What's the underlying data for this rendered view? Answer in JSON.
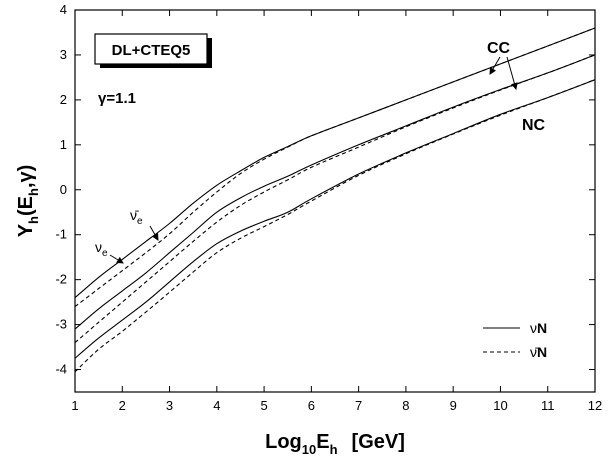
{
  "chart_data": {
    "type": "line",
    "xlabel": {
      "main": "Log",
      "sub": "10",
      "main2": "E",
      "sub2": "h",
      "unit": "[GeV]"
    },
    "ylabel": {
      "main": "Y",
      "sub": "h",
      "args": "(E",
      "argsub": "h",
      "tail": ",γ)"
    },
    "xlim": [
      1,
      12
    ],
    "ylim": [
      -4.5,
      4
    ],
    "xticks": [
      1,
      2,
      3,
      4,
      5,
      6,
      7,
      8,
      9,
      10,
      11,
      12
    ],
    "yticks": [
      -4,
      -3,
      -2,
      -1,
      0,
      1,
      2,
      3,
      4
    ],
    "box_label": "DL+CTEQ5",
    "gamma_label": "γ=1.1",
    "labels": {
      "cc": "CC",
      "nc": "NC",
      "nu_e": "ν",
      "nu_e_sub": "e",
      "nubar_e": "ν̄",
      "nubar_e_sub": "e"
    },
    "legend": {
      "position": "bottom-right",
      "entries": [
        {
          "symbol": "ν",
          "bold": "N",
          "style": "solid"
        },
        {
          "symbol": "ν̄",
          "bold": "N",
          "style": "dashed"
        }
      ]
    },
    "x": [
      1.0,
      1.5,
      2.0,
      2.5,
      3.0,
      3.5,
      4.0,
      4.5,
      5.0,
      5.5,
      6.0,
      7.0,
      8.0,
      9.0,
      10.0,
      11.0,
      12.0
    ],
    "series": [
      {
        "style": "solid",
        "group": "upper",
        "values": [
          -2.4,
          -1.95,
          -1.55,
          -1.15,
          -0.75,
          -0.3,
          0.1,
          0.42,
          0.72,
          0.96,
          1.2,
          1.6,
          2.0,
          2.4,
          2.8,
          3.2,
          3.6
        ]
      },
      {
        "style": "dashed",
        "group": "upper",
        "values": [
          -2.6,
          -2.2,
          -1.8,
          -1.4,
          -0.98,
          -0.5,
          -0.05,
          0.36,
          0.68,
          0.95,
          1.2,
          1.6,
          2.0,
          2.4,
          2.8,
          3.2,
          3.6
        ]
      },
      {
        "style": "solid",
        "group": "middle",
        "values": [
          -3.1,
          -2.65,
          -2.25,
          -1.85,
          -1.4,
          -0.95,
          -0.5,
          -0.18,
          0.08,
          0.3,
          0.55,
          1.0,
          1.42,
          1.84,
          2.23,
          2.6,
          3.0
        ]
      },
      {
        "style": "dashed",
        "group": "middle",
        "values": [
          -3.4,
          -2.95,
          -2.5,
          -2.05,
          -1.6,
          -1.15,
          -0.72,
          -0.35,
          -0.05,
          0.22,
          0.5,
          0.95,
          1.4,
          1.82,
          2.22,
          2.6,
          3.0
        ]
      },
      {
        "style": "solid",
        "group": "lower",
        "values": [
          -3.75,
          -3.3,
          -2.9,
          -2.5,
          -2.05,
          -1.6,
          -1.2,
          -0.92,
          -0.7,
          -0.5,
          -0.2,
          0.35,
          0.82,
          1.25,
          1.68,
          2.05,
          2.45
        ]
      },
      {
        "style": "dashed",
        "group": "lower",
        "values": [
          -4.05,
          -3.55,
          -3.15,
          -2.72,
          -2.28,
          -1.83,
          -1.4,
          -1.08,
          -0.82,
          -0.55,
          -0.25,
          0.32,
          0.8,
          1.24,
          1.66,
          2.05,
          2.45
        ]
      }
    ]
  }
}
